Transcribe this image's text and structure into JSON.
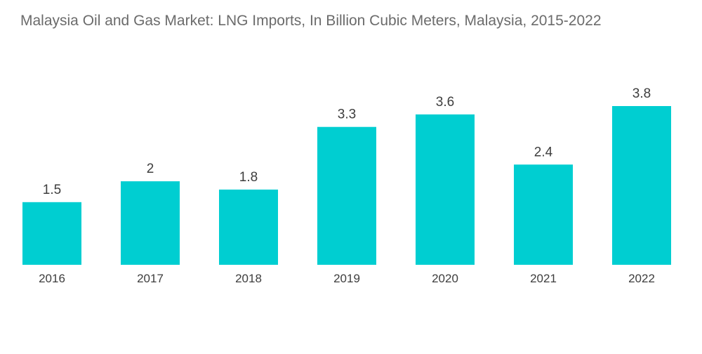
{
  "chart_data": {
    "type": "bar",
    "title": "Malaysia Oil and Gas Market: LNG Imports, In Billion Cubic Meters, Malaysia, 2015-2022",
    "categories": [
      "2016",
      "2017",
      "2018",
      "2019",
      "2020",
      "2021",
      "2022"
    ],
    "values": [
      1.5,
      2,
      1.8,
      3.3,
      3.6,
      2.4,
      3.8
    ],
    "value_labels": [
      "1.5",
      "2",
      "1.8",
      "3.3",
      "3.6",
      "2.4",
      "3.8"
    ],
    "xlabel": "",
    "ylabel": "",
    "ylim": [
      0,
      3.8
    ],
    "grid": false,
    "legend": "none",
    "bar_color": "#00CED1",
    "text_color": "#3d3d3d",
    "title_color": "#6b6b6b"
  }
}
